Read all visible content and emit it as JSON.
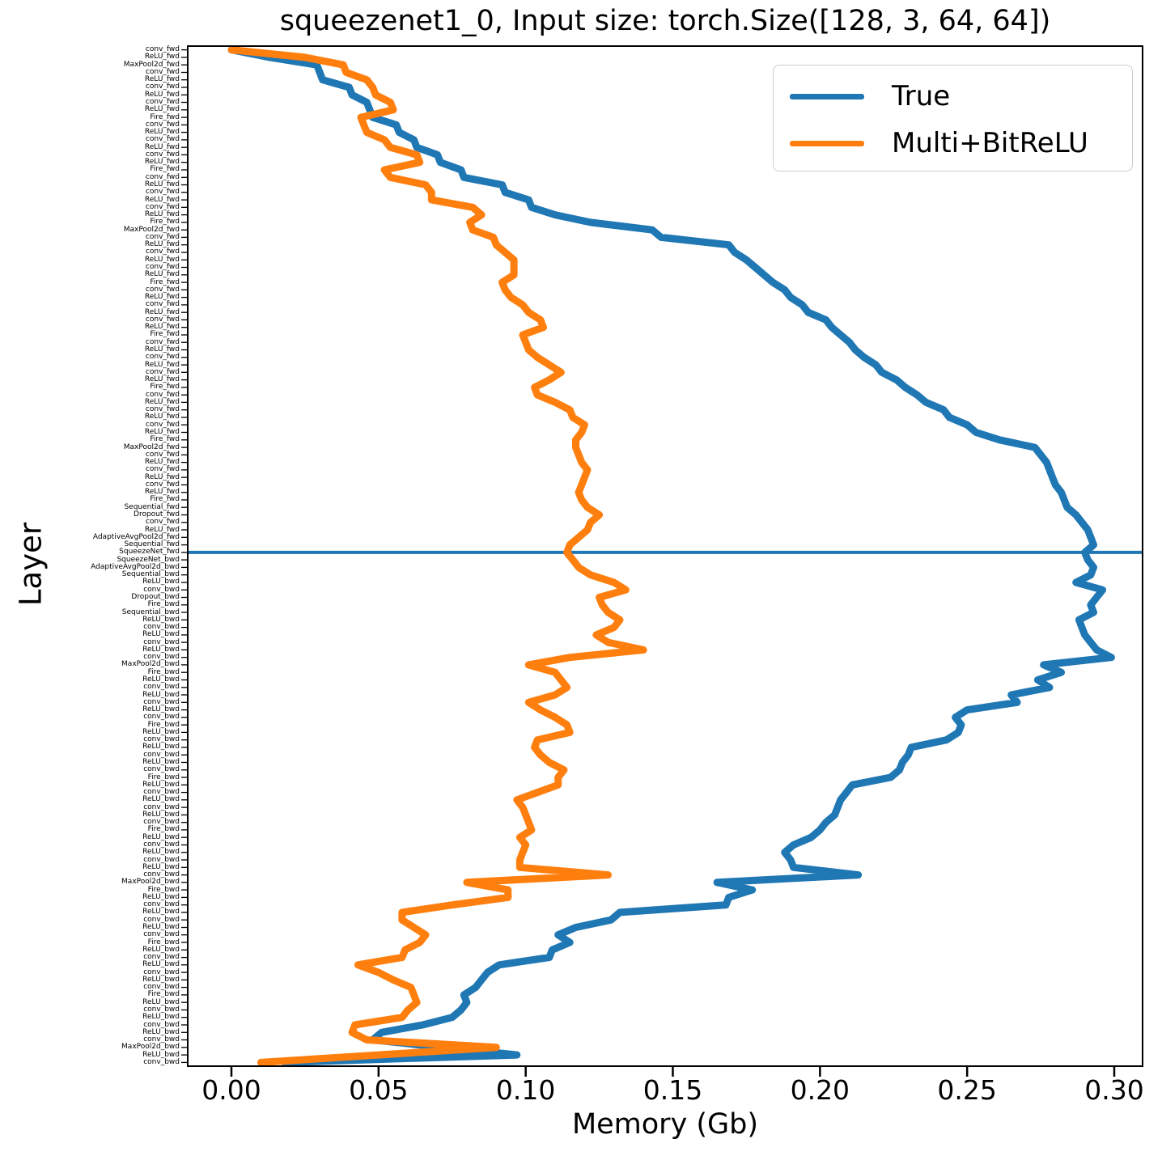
{
  "title": "squeezenet1_0, Input size: torch.Size([128, 3, 64, 64])",
  "xlabel": "Memory (Gb)",
  "ylabel": "Layer",
  "legend": {
    "entries": [
      {
        "label": "True",
        "color": "#1f77b4"
      },
      {
        "label": "Multi+BitReLU",
        "color": "#ff7f0e"
      }
    ]
  },
  "chart_data": {
    "type": "line",
    "title": "squeezenet1_0, Input size: torch.Size([128, 3, 64, 64])",
    "xlabel": "Memory (Gb)",
    "ylabel": "Layer",
    "xlim": [
      -0.015,
      0.31
    ],
    "xticks": [
      0.0,
      0.05,
      0.1,
      0.15,
      0.2,
      0.25,
      0.3
    ],
    "xtick_labels": [
      "0.00",
      "0.05",
      "0.10",
      "0.15",
      "0.20",
      "0.25",
      "0.30"
    ],
    "legend_position": "upper right",
    "grid": false,
    "hline": {
      "at_layer": "SqueezeNet_fwd",
      "layer_index": 67,
      "color": "#1f77b4",
      "width": 4
    },
    "layers": [
      "conv_fwd",
      "ReLU_fwd",
      "MaxPool2d_fwd",
      "conv_fwd",
      "ReLU_fwd",
      "conv_fwd",
      "ReLU_fwd",
      "conv_fwd",
      "ReLU_fwd",
      "Fire_fwd",
      "conv_fwd",
      "ReLU_fwd",
      "conv_fwd",
      "ReLU_fwd",
      "conv_fwd",
      "ReLU_fwd",
      "Fire_fwd",
      "conv_fwd",
      "ReLU_fwd",
      "conv_fwd",
      "ReLU_fwd",
      "conv_fwd",
      "ReLU_fwd",
      "Fire_fwd",
      "MaxPool2d_fwd",
      "conv_fwd",
      "ReLU_fwd",
      "conv_fwd",
      "ReLU_fwd",
      "conv_fwd",
      "ReLU_fwd",
      "Fire_fwd",
      "conv_fwd",
      "ReLU_fwd",
      "conv_fwd",
      "ReLU_fwd",
      "conv_fwd",
      "ReLU_fwd",
      "Fire_fwd",
      "conv_fwd",
      "ReLU_fwd",
      "conv_fwd",
      "ReLU_fwd",
      "conv_fwd",
      "ReLU_fwd",
      "Fire_fwd",
      "conv_fwd",
      "ReLU_fwd",
      "conv_fwd",
      "ReLU_fwd",
      "conv_fwd",
      "ReLU_fwd",
      "Fire_fwd",
      "MaxPool2d_fwd",
      "conv_fwd",
      "ReLU_fwd",
      "conv_fwd",
      "ReLU_fwd",
      "conv_fwd",
      "ReLU_fwd",
      "Fire_fwd",
      "Sequential_fwd",
      "Dropout_fwd",
      "conv_fwd",
      "ReLU_fwd",
      "AdaptiveAvgPool2d_fwd",
      "Sequential_fwd",
      "SqueezeNet_fwd",
      "SqueezeNet_bwd",
      "AdaptiveAvgPool2d_bwd",
      "Sequential_bwd",
      "ReLU_bwd",
      "conv_bwd",
      "Dropout_bwd",
      "Fire_bwd",
      "Sequential_bwd",
      "ReLU_bwd",
      "conv_bwd",
      "ReLU_bwd",
      "conv_bwd",
      "ReLU_bwd",
      "conv_bwd",
      "MaxPool2d_bwd",
      "Fire_bwd",
      "ReLU_bwd",
      "conv_bwd",
      "ReLU_bwd",
      "conv_bwd",
      "ReLU_bwd",
      "conv_bwd",
      "Fire_bwd",
      "ReLU_bwd",
      "conv_bwd",
      "ReLU_bwd",
      "conv_bwd",
      "ReLU_bwd",
      "conv_bwd",
      "Fire_bwd",
      "ReLU_bwd",
      "conv_bwd",
      "ReLU_bwd",
      "conv_bwd",
      "ReLU_bwd",
      "conv_bwd",
      "Fire_bwd",
      "ReLU_bwd",
      "conv_bwd",
      "ReLU_bwd",
      "conv_bwd",
      "ReLU_bwd",
      "conv_bwd",
      "MaxPool2d_bwd",
      "Fire_bwd",
      "ReLU_bwd",
      "conv_bwd",
      "ReLU_bwd",
      "conv_bwd",
      "ReLU_bwd",
      "conv_bwd",
      "Fire_bwd",
      "ReLU_bwd",
      "conv_bwd",
      "ReLU_bwd",
      "conv_bwd",
      "ReLU_bwd",
      "conv_bwd",
      "Fire_bwd",
      "ReLU_bwd",
      "conv_bwd",
      "ReLU_bwd",
      "conv_bwd",
      "ReLU_bwd",
      "conv_bwd",
      "MaxPool2d_bwd",
      "ReLU_bwd",
      "conv_bwd"
    ],
    "series": [
      {
        "name": "True",
        "color": "#1f77b4",
        "line_width": 9,
        "values": [
          0.0,
          0.013,
          0.029,
          0.03,
          0.031,
          0.04,
          0.041,
          0.046,
          0.047,
          0.048,
          0.056,
          0.057,
          0.062,
          0.063,
          0.07,
          0.071,
          0.078,
          0.079,
          0.092,
          0.093,
          0.101,
          0.102,
          0.11,
          0.122,
          0.143,
          0.146,
          0.169,
          0.171,
          0.175,
          0.178,
          0.181,
          0.184,
          0.188,
          0.19,
          0.194,
          0.196,
          0.202,
          0.204,
          0.207,
          0.21,
          0.212,
          0.215,
          0.219,
          0.221,
          0.226,
          0.229,
          0.233,
          0.236,
          0.242,
          0.244,
          0.25,
          0.253,
          0.261,
          0.273,
          0.275,
          0.277,
          0.278,
          0.279,
          0.28,
          0.282,
          0.283,
          0.284,
          0.287,
          0.289,
          0.291,
          0.292,
          0.293,
          0.29,
          0.291,
          0.293,
          0.292,
          0.287,
          0.296,
          0.294,
          0.292,
          0.293,
          0.288,
          0.289,
          0.29,
          0.292,
          0.294,
          0.299,
          0.276,
          0.282,
          0.274,
          0.278,
          0.265,
          0.267,
          0.25,
          0.246,
          0.248,
          0.247,
          0.243,
          0.231,
          0.23,
          0.228,
          0.227,
          0.224,
          0.211,
          0.209,
          0.207,
          0.206,
          0.205,
          0.202,
          0.2,
          0.197,
          0.191,
          0.188,
          0.19,
          0.191,
          0.213,
          0.165,
          0.177,
          0.169,
          0.168,
          0.132,
          0.129,
          0.117,
          0.111,
          0.115,
          0.109,
          0.108,
          0.091,
          0.087,
          0.085,
          0.083,
          0.079,
          0.08,
          0.078,
          0.075,
          0.065,
          0.051,
          0.048,
          0.072,
          0.097,
          0.018
        ]
      },
      {
        "name": "Multi+BitReLU",
        "color": "#ff7f0e",
        "line_width": 9,
        "values": [
          0.0,
          0.025,
          0.038,
          0.039,
          0.046,
          0.048,
          0.049,
          0.054,
          0.055,
          0.044,
          0.045,
          0.046,
          0.052,
          0.054,
          0.063,
          0.064,
          0.052,
          0.054,
          0.066,
          0.068,
          0.068,
          0.082,
          0.085,
          0.081,
          0.082,
          0.089,
          0.09,
          0.093,
          0.096,
          0.096,
          0.096,
          0.092,
          0.093,
          0.095,
          0.099,
          0.101,
          0.105,
          0.106,
          0.099,
          0.1,
          0.101,
          0.104,
          0.108,
          0.112,
          0.108,
          0.103,
          0.104,
          0.11,
          0.115,
          0.116,
          0.12,
          0.119,
          0.117,
          0.117,
          0.118,
          0.119,
          0.121,
          0.12,
          0.119,
          0.118,
          0.119,
          0.121,
          0.125,
          0.122,
          0.121,
          0.118,
          0.115,
          0.114,
          0.116,
          0.118,
          0.122,
          0.13,
          0.134,
          0.125,
          0.126,
          0.128,
          0.132,
          0.13,
          0.124,
          0.128,
          0.14,
          0.115,
          0.101,
          0.11,
          0.112,
          0.114,
          0.11,
          0.101,
          0.105,
          0.11,
          0.114,
          0.115,
          0.104,
          0.103,
          0.105,
          0.108,
          0.113,
          0.111,
          0.111,
          0.104,
          0.097,
          0.099,
          0.1,
          0.101,
          0.102,
          0.098,
          0.1,
          0.099,
          0.098,
          0.098,
          0.128,
          0.08,
          0.094,
          0.094,
          0.075,
          0.058,
          0.058,
          0.062,
          0.066,
          0.064,
          0.059,
          0.058,
          0.043,
          0.05,
          0.055,
          0.061,
          0.062,
          0.063,
          0.06,
          0.058,
          0.042,
          0.041,
          0.046,
          0.09,
          0.05,
          0.01
        ]
      }
    ]
  }
}
